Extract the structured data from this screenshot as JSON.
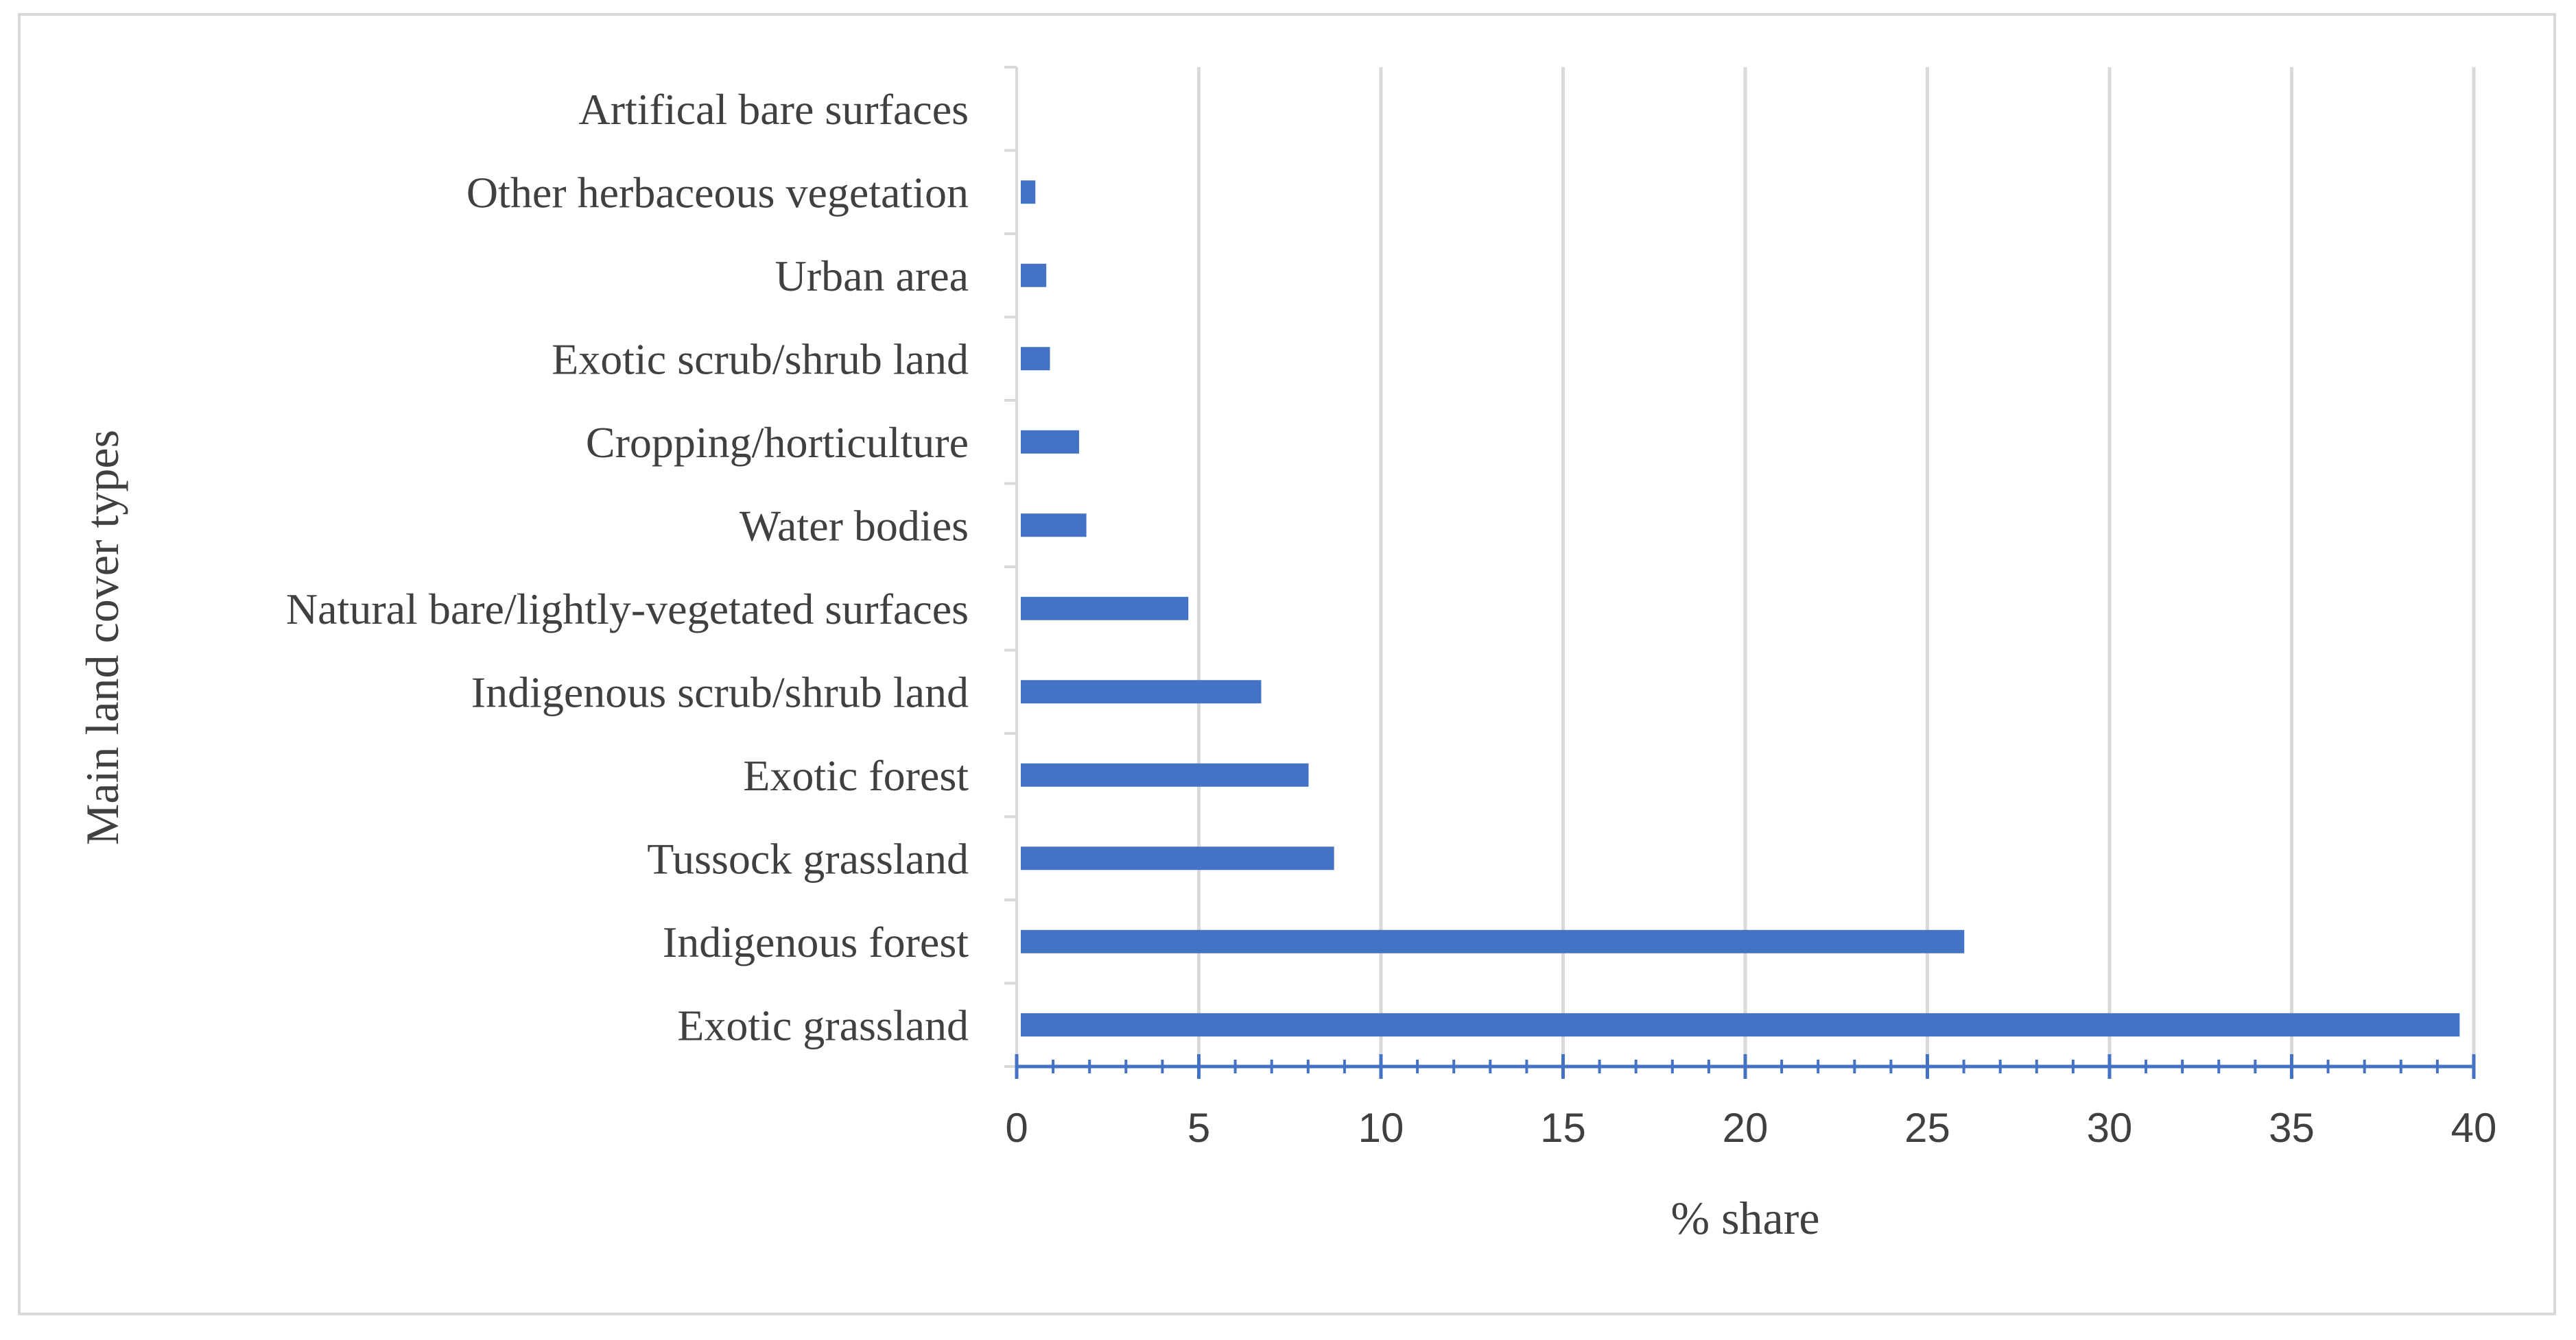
{
  "chart_data": {
    "type": "bar",
    "orientation": "horizontal",
    "categories": [
      "Exotic grassland",
      "Indigenous forest",
      "Tussock grassland",
      "Exotic forest",
      "Indigenous scrub/shrub land",
      "Natural bare/lightly-vegetated surfaces",
      "Water bodies",
      "Cropping/horticulture",
      "Exotic scrub/shrub land",
      "Urban area",
      "Other herbaceous vegetation",
      "Artifical bare surfaces"
    ],
    "values": [
      39.5,
      25.9,
      8.6,
      7.9,
      6.6,
      4.6,
      1.8,
      1.6,
      0.8,
      0.7,
      0.4,
      0.0
    ],
    "xlabel": "% share",
    "ylabel": "Main land cover types",
    "xlim": [
      0,
      40
    ],
    "xticks": [
      0,
      5,
      10,
      15,
      20,
      25,
      30,
      35,
      40
    ],
    "grid": "vertical",
    "legend": "none",
    "bar_color": "#4472C4",
    "axis_color": "#4472C4",
    "gridline_color": "#d9d9d9"
  }
}
